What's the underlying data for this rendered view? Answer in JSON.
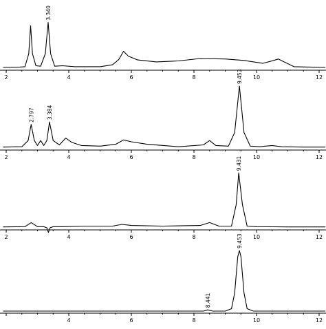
{
  "chart_data": [
    {
      "type": "line",
      "x": [
        1.9,
        2.4,
        2.6,
        2.72,
        2.78,
        2.84,
        2.95,
        3.1,
        3.25,
        3.34,
        3.42,
        3.55,
        3.8,
        4.2,
        4.6,
        5.0,
        5.4,
        5.6,
        5.75,
        5.9,
        6.2,
        6.8,
        7.5,
        8.2,
        9.0,
        9.6,
        10.2,
        10.55,
        10.7,
        10.85,
        11.2,
        11.8,
        12.2
      ],
      "values": [
        1.5,
        2,
        3,
        30,
        88,
        30,
        5,
        4,
        30,
        95,
        30,
        4,
        5,
        3,
        3,
        3,
        7,
        18,
        35,
        25,
        17,
        13,
        15,
        20,
        19,
        16,
        10,
        16,
        19,
        14,
        3,
        2,
        1.5
      ],
      "peak_labels": [
        {
          "x": 3.34,
          "text": "3.340"
        }
      ],
      "xlim": [
        1.9,
        12.2
      ],
      "ticks": [
        "2",
        "4",
        "6",
        "8",
        "10",
        "12"
      ]
    },
    {
      "type": "line",
      "x": [
        1.9,
        2.5,
        2.7,
        2.797,
        2.9,
        3.0,
        3.1,
        3.2,
        3.3,
        3.384,
        3.5,
        3.7,
        3.9,
        4.1,
        4.4,
        5.0,
        5.5,
        5.75,
        6.0,
        6.5,
        7.5,
        8.3,
        8.5,
        8.7,
        9.1,
        9.3,
        9.453,
        9.6,
        9.8,
        10.1,
        10.5,
        10.8,
        11.5,
        12.2
      ],
      "values": [
        1.5,
        2,
        12,
        38,
        12,
        4,
        12,
        4,
        12,
        42,
        12,
        5,
        16,
        9,
        4,
        3,
        6,
        13,
        10,
        6,
        2,
        5,
        12,
        4,
        3,
        25,
        100,
        25,
        3,
        2,
        4,
        2,
        1.5,
        1.5
      ],
      "peak_labels": [
        {
          "x": 2.797,
          "text": "2.797"
        },
        {
          "x": 3.384,
          "text": "3.384"
        },
        {
          "x": 9.453,
          "text": "9.453"
        }
      ],
      "xlim": [
        1.9,
        12.2
      ],
      "ticks": [
        "2",
        "4",
        "6",
        "8",
        "10",
        "12"
      ]
    },
    {
      "type": "line",
      "x": [
        1.9,
        2.6,
        2.8,
        3.0,
        3.2,
        3.3,
        3.35,
        3.4,
        3.5,
        3.8,
        4.5,
        5.4,
        5.7,
        6.0,
        7.0,
        8.2,
        8.5,
        8.8,
        9.2,
        9.35,
        9.431,
        9.55,
        9.7,
        10.0,
        11.0,
        12.2
      ],
      "values": [
        1.5,
        2,
        9,
        2,
        2,
        0,
        -8,
        0,
        2,
        2,
        3,
        3,
        6,
        4,
        3,
        4,
        9,
        3,
        3,
        40,
        95,
        40,
        3,
        2,
        1.5,
        1.5
      ],
      "peak_labels": [
        {
          "x": 9.431,
          "text": "9.431"
        }
      ],
      "xlim": [
        1.9,
        12.2
      ],
      "ticks": [
        "2",
        "4",
        "6",
        "8",
        "10",
        "12"
      ]
    },
    {
      "type": "line",
      "x": [
        1.9,
        3.0,
        5.0,
        7.0,
        8.3,
        8.441,
        8.6,
        9.0,
        9.2,
        9.3,
        9.4,
        9.453,
        9.5,
        9.6,
        9.7,
        9.9,
        10.5,
        12.2
      ],
      "values": [
        0,
        0,
        0,
        0,
        0,
        2,
        0,
        0,
        4,
        30,
        90,
        100,
        90,
        30,
        4,
        0,
        0,
        0
      ],
      "peak_labels": [
        {
          "x": 8.441,
          "text": "8.441"
        },
        {
          "x": 9.453,
          "text": "9.453"
        }
      ],
      "xlim": [
        1.9,
        12.2
      ],
      "ticks": [
        "",
        "4",
        "6",
        "8",
        "10",
        "12"
      ]
    }
  ]
}
